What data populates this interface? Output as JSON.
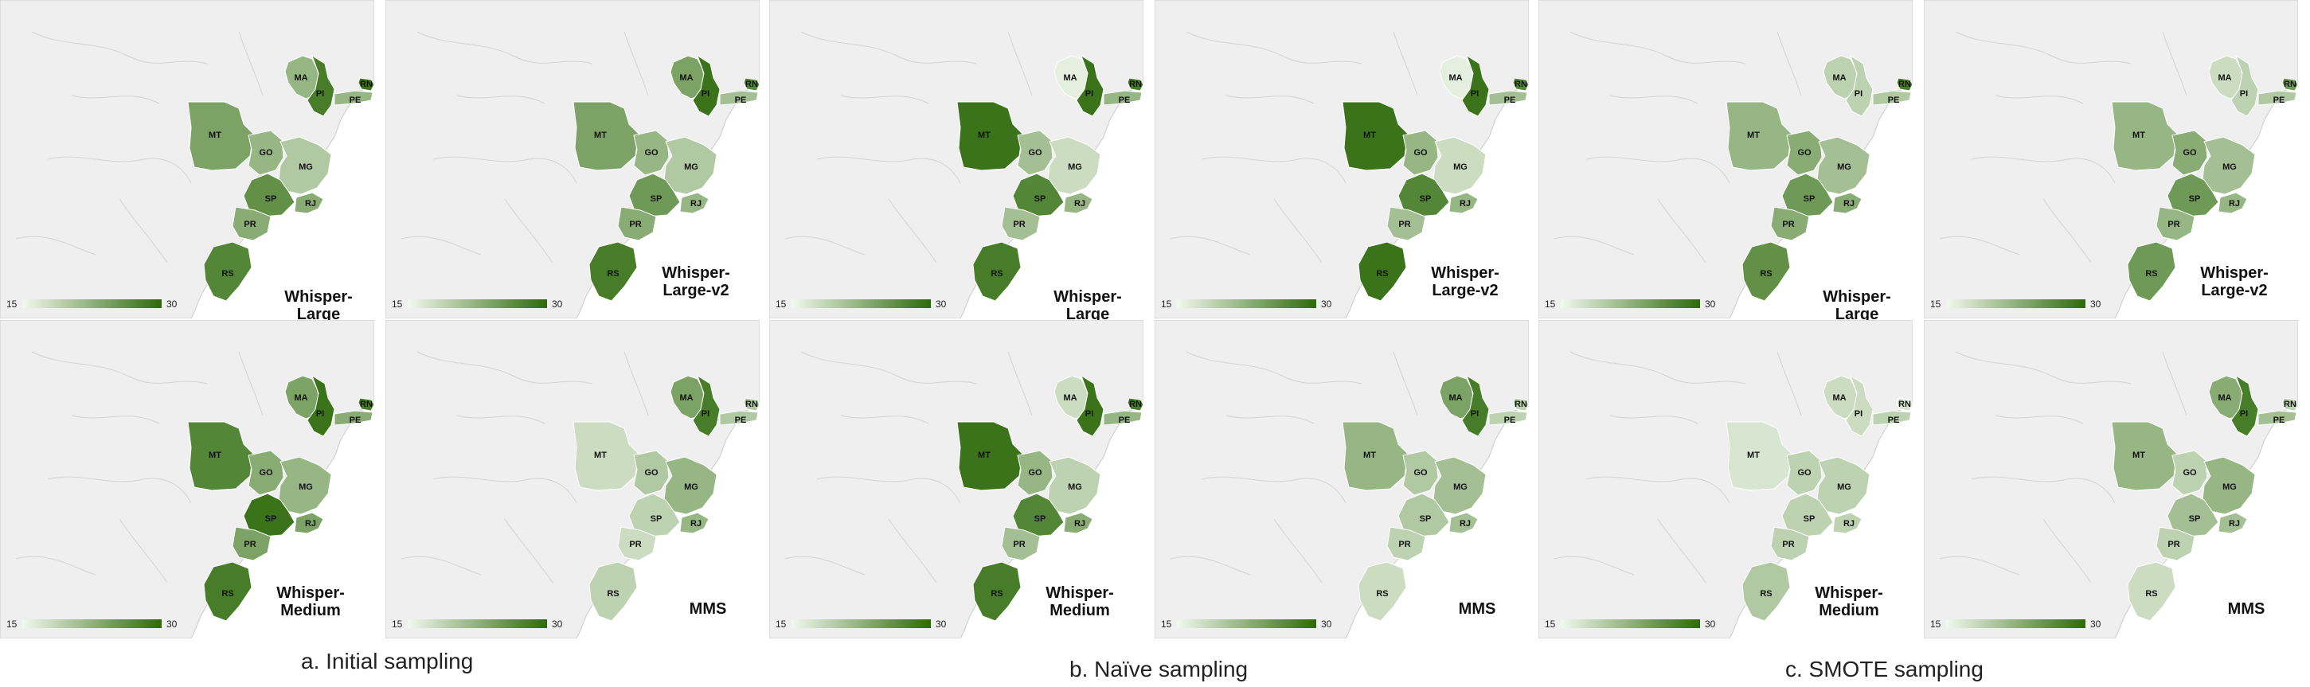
{
  "legend": {
    "min_label": "15",
    "max_label": "30",
    "min_value": 15,
    "max_value": 30,
    "color_low": "#f2f8ee",
    "color_high": "#2d6a0a"
  },
  "palette": {
    "background_land": "#efefef",
    "border": "#d2d2d2",
    "region_border": "#ffffff"
  },
  "state_codes": [
    "MA",
    "PI",
    "RN",
    "PE",
    "MT",
    "GO",
    "MG",
    "SP",
    "RJ",
    "PR",
    "RS"
  ],
  "panels": [
    {
      "title": "Whisper-Large",
      "values": {
        "MA": 22,
        "PI": 28,
        "RN": 29,
        "PE": 22,
        "MT": 24,
        "GO": 22,
        "MG": 20,
        "SP": 26,
        "RJ": 23,
        "PR": 23,
        "RS": 27
      }
    },
    {
      "title": "Whisper-Large-v2",
      "values": {
        "MA": 24,
        "PI": 29,
        "RN": 27,
        "PE": 21,
        "MT": 24,
        "GO": 22,
        "MG": 20,
        "SP": 25,
        "RJ": 22,
        "PR": 23,
        "RS": 28
      }
    },
    {
      "title": "Whisper-Large",
      "values": {
        "MA": 16,
        "PI": 29,
        "RN": 28,
        "PE": 22,
        "MT": 29,
        "GO": 21,
        "MG": 18,
        "SP": 27,
        "RJ": 22,
        "PR": 21,
        "RS": 28
      }
    },
    {
      "title": "Whisper-Large-v2",
      "values": {
        "MA": 16,
        "PI": 29,
        "RN": 27,
        "PE": 21,
        "MT": 29,
        "GO": 22,
        "MG": 18,
        "SP": 27,
        "RJ": 22,
        "PR": 21,
        "RS": 29
      }
    },
    {
      "title": "Whisper-Large",
      "values": {
        "MA": 19,
        "PI": 19,
        "RN": 28,
        "PE": 20,
        "MT": 22,
        "GO": 23,
        "MG": 21,
        "SP": 25,
        "RJ": 23,
        "PR": 23,
        "RS": 26
      }
    },
    {
      "title": "Whisper-Large-v2",
      "values": {
        "MA": 18,
        "PI": 19,
        "RN": 25,
        "PE": 20,
        "MT": 22,
        "GO": 23,
        "MG": 21,
        "SP": 25,
        "RJ": 22,
        "PR": 22,
        "RS": 25
      }
    },
    {
      "title": "Whisper-Medium",
      "values": {
        "MA": 24,
        "PI": 29,
        "RN": 28,
        "PE": 23,
        "MT": 27,
        "GO": 23,
        "MG": 22,
        "SP": 29,
        "RJ": 24,
        "PR": 24,
        "RS": 28
      }
    },
    {
      "title": "MMS",
      "values": {
        "MA": 24,
        "PI": 28,
        "RN": 20,
        "PE": 20,
        "MT": 18,
        "GO": 20,
        "MG": 22,
        "SP": 19,
        "RJ": 22,
        "PR": 18,
        "RS": 19
      }
    },
    {
      "title": "Whisper-Medium",
      "values": {
        "MA": 18,
        "PI": 29,
        "RN": 28,
        "PE": 22,
        "MT": 29,
        "GO": 22,
        "MG": 19,
        "SP": 27,
        "RJ": 23,
        "PR": 21,
        "RS": 28
      }
    },
    {
      "title": "MMS",
      "values": {
        "MA": 24,
        "PI": 28,
        "RN": 19,
        "PE": 19,
        "MT": 22,
        "GO": 20,
        "MG": 21,
        "SP": 20,
        "RJ": 21,
        "PR": 19,
        "RS": 18
      }
    },
    {
      "title": "Whisper-Medium",
      "values": {
        "MA": 18,
        "PI": 18,
        "RN": 17,
        "PE": 19,
        "MT": 17,
        "GO": 19,
        "MG": 19,
        "SP": 19,
        "RJ": 19,
        "PR": 19,
        "RS": 20
      }
    },
    {
      "title": "MMS",
      "values": {
        "MA": 23,
        "PI": 28,
        "RN": 19,
        "PE": 21,
        "MT": 22,
        "GO": 19,
        "MG": 22,
        "SP": 21,
        "RJ": 21,
        "PR": 19,
        "RS": 18
      }
    }
  ],
  "captions": [
    "a. Initial sampling",
    "b. Naïve sampling",
    "c. SMOTE sampling"
  ]
}
